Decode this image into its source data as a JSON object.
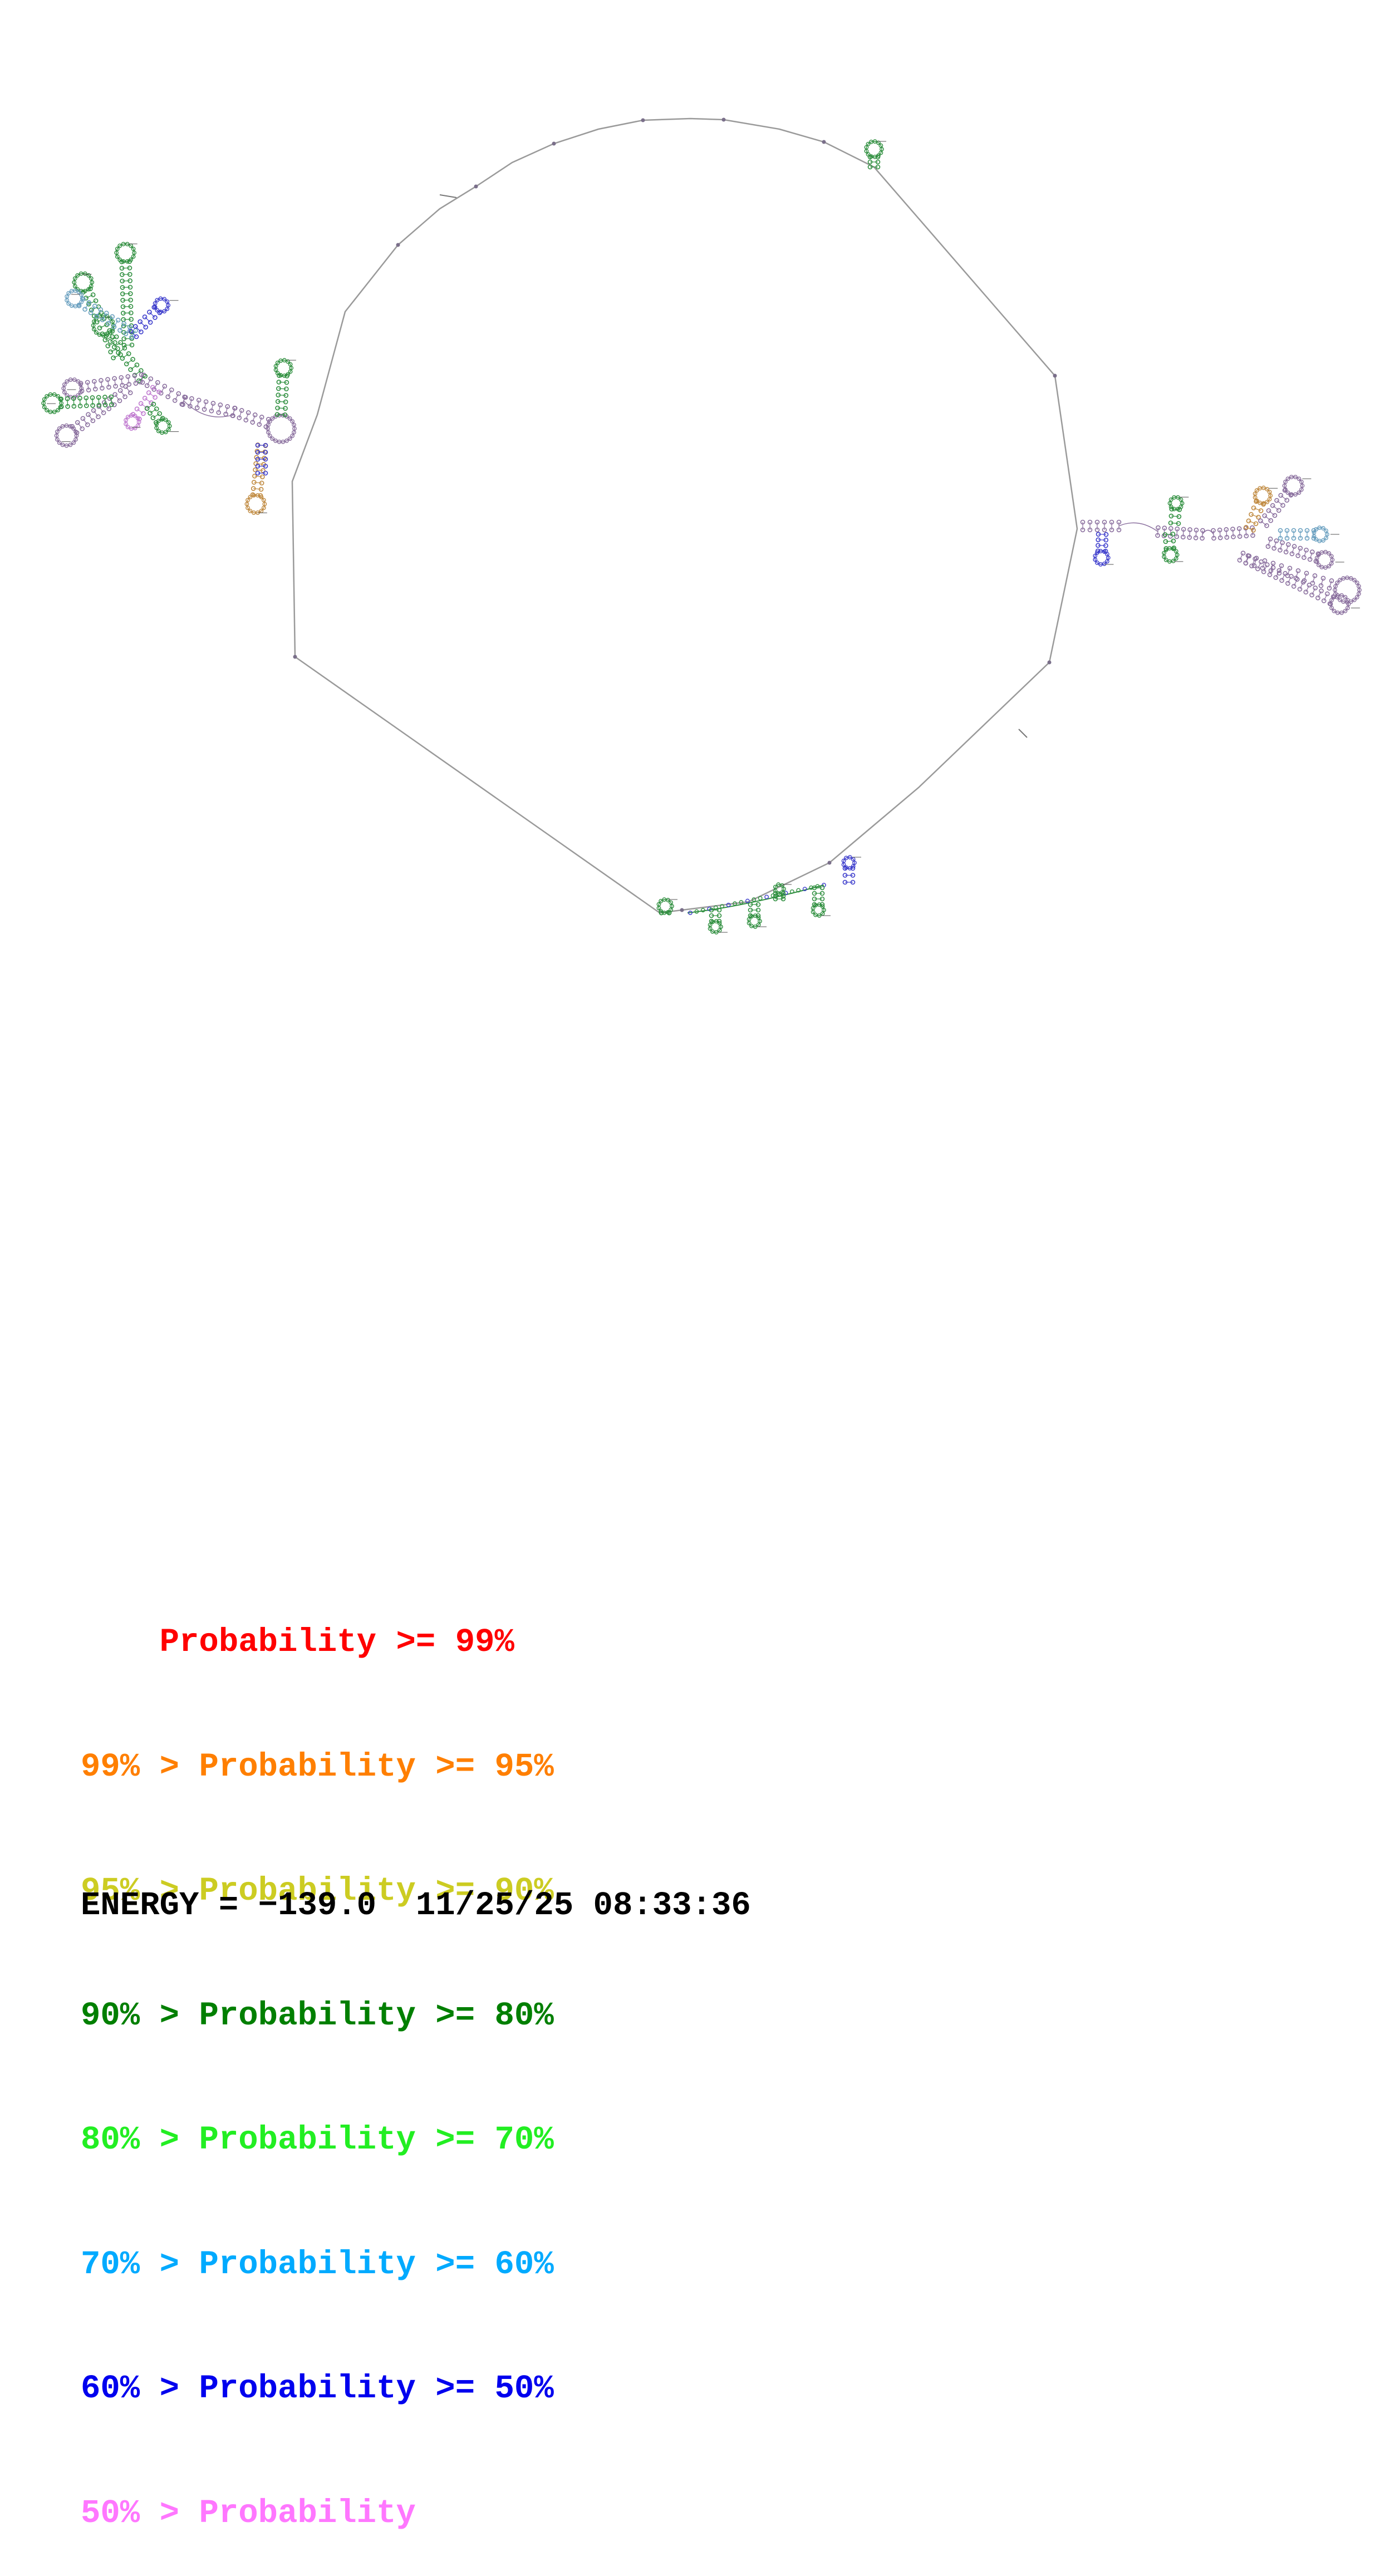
{
  "structure": {
    "backbone_color": "#9a9a9a",
    "nucleotide_color": "#7a6f8a",
    "stem_colors": [
      "#8a6f9e",
      "#2f8f3f",
      "#3c3ccc",
      "#c08a40",
      "#6aa0c0",
      "#c07ad0"
    ]
  },
  "legend": {
    "rows": [
      {
        "prefix": "    ",
        "text": "Probability >= 99%",
        "color": "#ff0000"
      },
      {
        "prefix": "99% > ",
        "text": "Probability >= 95%",
        "color": "#ff7f00"
      },
      {
        "prefix": "95% > ",
        "text": "Probability >= 90%",
        "color": "#cccc22"
      },
      {
        "prefix": "90% > ",
        "text": "Probability >= 80%",
        "color": "#007f00"
      },
      {
        "prefix": "80% > ",
        "text": "Probability >= 70%",
        "color": "#22ee22"
      },
      {
        "prefix": "70% > ",
        "text": "Probability >= 60%",
        "color": "#00aaff"
      },
      {
        "prefix": "60% > ",
        "text": "Probability >= 50%",
        "color": "#0000ee"
      },
      {
        "prefix": "50% > ",
        "text": "Probability",
        "color": "#ff77ff"
      }
    ]
  },
  "footer": {
    "energy_label": "ENERGY = ",
    "energy_value": "−139.0",
    "timestamp": "11/25/25 08:33:36"
  }
}
